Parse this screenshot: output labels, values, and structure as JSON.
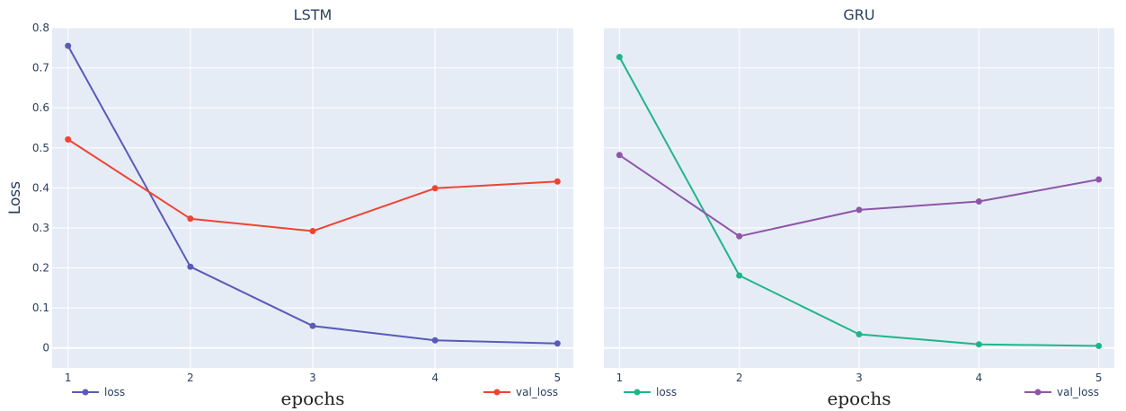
{
  "chart_data": [
    {
      "type": "line",
      "title": "LSTM",
      "xlabel": "epochs",
      "ylabel": "Loss",
      "x": [
        1,
        2,
        3,
        4,
        5
      ],
      "xticks": [
        "1",
        "2",
        "3",
        "4",
        "5"
      ],
      "ylim": [
        -0.05,
        0.8
      ],
      "yticks": [
        "0",
        "0.1",
        "0.2",
        "0.3",
        "0.4",
        "0.5",
        "0.6",
        "0.7",
        "0.8"
      ],
      "grid": true,
      "legend_position": "bottom",
      "series": [
        {
          "name": "loss",
          "color": "#5a5ab8",
          "values": [
            0.755,
            0.203,
            0.055,
            0.019,
            0.011
          ]
        },
        {
          "name": "val_loss",
          "color": "#ee4433",
          "values": [
            0.521,
            0.323,
            0.292,
            0.399,
            0.416
          ]
        }
      ]
    },
    {
      "type": "line",
      "title": "GRU",
      "xlabel": "epochs",
      "ylabel": "",
      "x": [
        1,
        2,
        3,
        4,
        5
      ],
      "xticks": [
        "1",
        "2",
        "3",
        "4",
        "5"
      ],
      "ylim": [
        -0.05,
        0.8
      ],
      "yticks": [],
      "grid": true,
      "legend_position": "bottom",
      "series": [
        {
          "name": "loss",
          "color": "#1fb58a",
          "values": [
            0.727,
            0.181,
            0.034,
            0.009,
            0.005
          ]
        },
        {
          "name": "val_loss",
          "color": "#8e56a8",
          "values": [
            0.482,
            0.279,
            0.345,
            0.366,
            0.421
          ]
        }
      ]
    }
  ],
  "style": {
    "plot_bg": "#e5ecf6",
    "grid_color": "#ffffff",
    "text_color": "#2a3f5f"
  }
}
